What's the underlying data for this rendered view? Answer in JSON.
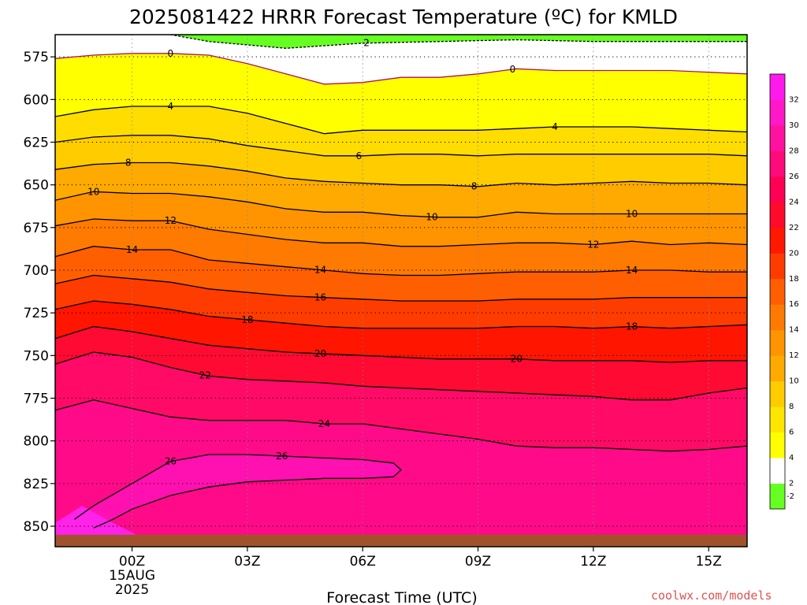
{
  "chart_data": {
    "type": "heatmap",
    "title": "2025081422 HRRR Forecast Temperature (ºC) for KMLD",
    "xlabel": "Forecast Time (UTC)",
    "ylabel": "",
    "x_ticks": [
      {
        "hour": 0,
        "label": "00Z",
        "sub": [
          "15AUG",
          "2025"
        ]
      },
      {
        "hour": 3,
        "label": "03Z"
      },
      {
        "hour": 6,
        "label": "06Z"
      },
      {
        "hour": 9,
        "label": "09Z"
      },
      {
        "hour": 12,
        "label": "12Z"
      },
      {
        "hour": 15,
        "label": "15Z"
      }
    ],
    "xlim": [
      -2,
      16
    ],
    "y_ticks": [
      575,
      600,
      625,
      650,
      675,
      700,
      725,
      750,
      775,
      800,
      825,
      850
    ],
    "ylim": [
      562,
      862
    ],
    "ground_level_hpa": 855,
    "colorbar": {
      "levels": [
        -2,
        2,
        4,
        6,
        8,
        10,
        12,
        14,
        16,
        18,
        20,
        22,
        24,
        26,
        28,
        30,
        32
      ],
      "colors": [
        "#66ff22",
        "#ffffff",
        "#ffff00",
        "#ffe600",
        "#ffcc00",
        "#ffaa00",
        "#ff9400",
        "#ff7a00",
        "#ff5f00",
        "#ff3c00",
        "#ff1900",
        "#ff0a2a",
        "#ff0055",
        "#ff0a7a",
        "#ff12a0",
        "#ff18c8",
        "#ff1aec"
      ]
    },
    "contours": [
      {
        "value": 2,
        "label": "2",
        "dashed": true,
        "color": "#000000",
        "points": [
          [
            1,
            562
          ],
          [
            2,
            566
          ],
          [
            4,
            570
          ],
          [
            6,
            567
          ],
          [
            8,
            566
          ],
          [
            10,
            565
          ],
          [
            12,
            566
          ],
          [
            14,
            566
          ],
          [
            16,
            566
          ]
        ],
        "label_at": 6.1
      },
      {
        "value": 0,
        "label": "0",
        "color": "#aa1166",
        "dashed": false,
        "points": [
          [
            -2,
            576
          ],
          [
            -1,
            574
          ],
          [
            0,
            573
          ],
          [
            1,
            573
          ],
          [
            2,
            574
          ],
          [
            3,
            579
          ],
          [
            4,
            585
          ],
          [
            5,
            591
          ],
          [
            6,
            590
          ],
          [
            7,
            587
          ],
          [
            8,
            587
          ],
          [
            9,
            585
          ],
          [
            10,
            582
          ],
          [
            11,
            583
          ],
          [
            12,
            583
          ],
          [
            13,
            583
          ],
          [
            14,
            583
          ],
          [
            15,
            584
          ],
          [
            16,
            585
          ]
        ],
        "label_at": 1.0,
        "label_at2": 9.9
      },
      {
        "value": 4,
        "label": "4",
        "points": [
          [
            -2,
            610
          ],
          [
            -1,
            606
          ],
          [
            0,
            604
          ],
          [
            1,
            604
          ],
          [
            2,
            604
          ],
          [
            3,
            608
          ],
          [
            4,
            614
          ],
          [
            5,
            620
          ],
          [
            6,
            618
          ],
          [
            7,
            618
          ],
          [
            8,
            618
          ],
          [
            9,
            618
          ],
          [
            10,
            617
          ],
          [
            11,
            616
          ],
          [
            12,
            616
          ],
          [
            13,
            616
          ],
          [
            14,
            617
          ],
          [
            15,
            618
          ],
          [
            16,
            619
          ]
        ],
        "label_at": 1.0,
        "label_at2": 11.0
      },
      {
        "value": 6,
        "label": "6",
        "points": [
          [
            -2,
            625
          ],
          [
            -1,
            622
          ],
          [
            0,
            621
          ],
          [
            1,
            621
          ],
          [
            2,
            623
          ],
          [
            3,
            627
          ],
          [
            4,
            630
          ],
          [
            5,
            633
          ],
          [
            6,
            633
          ],
          [
            7,
            632
          ],
          [
            8,
            632
          ],
          [
            9,
            633
          ],
          [
            10,
            632
          ],
          [
            11,
            632
          ],
          [
            12,
            632
          ],
          [
            13,
            632
          ],
          [
            14,
            632
          ],
          [
            15,
            632
          ],
          [
            16,
            633
          ]
        ],
        "label_at": 5.9
      },
      {
        "value": 8,
        "label": "8",
        "points": [
          [
            -2,
            641
          ],
          [
            -1,
            638
          ],
          [
            0,
            637
          ],
          [
            1,
            637
          ],
          [
            2,
            639
          ],
          [
            3,
            642
          ],
          [
            4,
            646
          ],
          [
            5,
            648
          ],
          [
            6,
            649
          ],
          [
            7,
            650
          ],
          [
            8,
            650
          ],
          [
            9,
            651
          ],
          [
            10,
            649
          ],
          [
            11,
            650
          ],
          [
            12,
            649
          ],
          [
            13,
            648
          ],
          [
            14,
            649
          ],
          [
            15,
            649
          ],
          [
            16,
            650
          ]
        ],
        "label_at": -0.1,
        "label_at2": 8.9
      },
      {
        "value": 10,
        "label": "10",
        "points": [
          [
            -2,
            659
          ],
          [
            -1,
            654
          ],
          [
            0,
            655
          ],
          [
            1,
            655
          ],
          [
            2,
            657
          ],
          [
            3,
            660
          ],
          [
            4,
            664
          ],
          [
            5,
            666
          ],
          [
            6,
            666
          ],
          [
            7,
            668
          ],
          [
            8,
            669
          ],
          [
            9,
            669
          ],
          [
            10,
            666
          ],
          [
            11,
            667
          ],
          [
            12,
            667
          ],
          [
            13,
            667
          ],
          [
            14,
            667
          ],
          [
            15,
            667
          ],
          [
            16,
            667
          ]
        ],
        "label_at": -1.0,
        "label_at2": 7.8,
        "label_at3": 13.0
      },
      {
        "value": 12,
        "label": "12",
        "points": [
          [
            -2,
            674
          ],
          [
            -1,
            670
          ],
          [
            0,
            671
          ],
          [
            1,
            671
          ],
          [
            2,
            676
          ],
          [
            3,
            679
          ],
          [
            4,
            682
          ],
          [
            5,
            684
          ],
          [
            6,
            684
          ],
          [
            7,
            686
          ],
          [
            8,
            686
          ],
          [
            9,
            685
          ],
          [
            10,
            684
          ],
          [
            11,
            684
          ],
          [
            12,
            685
          ],
          [
            13,
            683
          ],
          [
            14,
            685
          ],
          [
            15,
            684
          ],
          [
            16,
            685
          ]
        ],
        "label_at": 1.0,
        "label_at2": 12.0
      },
      {
        "value": 14,
        "label": "14",
        "points": [
          [
            -2,
            692
          ],
          [
            -1,
            686
          ],
          [
            0,
            688
          ],
          [
            1,
            688
          ],
          [
            2,
            694
          ],
          [
            3,
            696
          ],
          [
            4,
            698
          ],
          [
            5,
            700
          ],
          [
            6,
            702
          ],
          [
            7,
            703
          ],
          [
            8,
            703
          ],
          [
            9,
            702
          ],
          [
            10,
            701
          ],
          [
            11,
            701
          ],
          [
            12,
            701
          ],
          [
            13,
            700
          ],
          [
            14,
            700
          ],
          [
            15,
            701
          ],
          [
            16,
            701
          ]
        ],
        "label_at": 0.0,
        "label_at2": 4.9,
        "label_at3": 13.0
      },
      {
        "value": 16,
        "label": "16",
        "points": [
          [
            -2,
            708
          ],
          [
            -1,
            703
          ],
          [
            0,
            705
          ],
          [
            1,
            707
          ],
          [
            2,
            711
          ],
          [
            3,
            713
          ],
          [
            4,
            715
          ],
          [
            5,
            716
          ],
          [
            6,
            717
          ],
          [
            7,
            718
          ],
          [
            8,
            718
          ],
          [
            9,
            718
          ],
          [
            10,
            717
          ],
          [
            11,
            717
          ],
          [
            12,
            717
          ],
          [
            13,
            716
          ],
          [
            14,
            716
          ],
          [
            15,
            716
          ],
          [
            16,
            716
          ]
        ],
        "label_at": 4.9
      },
      {
        "value": 18,
        "label": "18",
        "points": [
          [
            -2,
            723
          ],
          [
            -1,
            718
          ],
          [
            0,
            720
          ],
          [
            1,
            723
          ],
          [
            2,
            727
          ],
          [
            3,
            729
          ],
          [
            4,
            731
          ],
          [
            5,
            733
          ],
          [
            6,
            734
          ],
          [
            7,
            734
          ],
          [
            8,
            734
          ],
          [
            9,
            734
          ],
          [
            10,
            733
          ],
          [
            11,
            733
          ],
          [
            12,
            734
          ],
          [
            13,
            733
          ],
          [
            14,
            734
          ],
          [
            15,
            733
          ],
          [
            16,
            732
          ]
        ],
        "label_at": 3.0,
        "label_at2": 13.0
      },
      {
        "value": 20,
        "label": "20",
        "points": [
          [
            -2,
            740
          ],
          [
            -1,
            733
          ],
          [
            0,
            736
          ],
          [
            1,
            740
          ],
          [
            2,
            744
          ],
          [
            3,
            746
          ],
          [
            4,
            748
          ],
          [
            5,
            749
          ],
          [
            6,
            750
          ],
          [
            7,
            751
          ],
          [
            8,
            752
          ],
          [
            9,
            752
          ],
          [
            10,
            752
          ],
          [
            11,
            753
          ],
          [
            12,
            753
          ],
          [
            13,
            753
          ],
          [
            14,
            754
          ],
          [
            15,
            753
          ],
          [
            16,
            753
          ]
        ],
        "label_at": 4.9,
        "label_at2": 10.0
      },
      {
        "value": 22,
        "label": "22",
        "points": [
          [
            -2,
            755
          ],
          [
            -1,
            748
          ],
          [
            0,
            751
          ],
          [
            1,
            757
          ],
          [
            2,
            762
          ],
          [
            3,
            764
          ],
          [
            4,
            765
          ],
          [
            5,
            766
          ],
          [
            6,
            768
          ],
          [
            7,
            769
          ],
          [
            8,
            770
          ],
          [
            9,
            771
          ],
          [
            10,
            772
          ],
          [
            11,
            773
          ],
          [
            12,
            774
          ],
          [
            13,
            776
          ],
          [
            14,
            776
          ],
          [
            15,
            772
          ],
          [
            16,
            769
          ]
        ],
        "label_at": 1.9
      },
      {
        "value": 24,
        "label": "24",
        "points": [
          [
            -2,
            782
          ],
          [
            -1,
            776
          ],
          [
            0,
            781
          ],
          [
            1,
            786
          ],
          [
            2,
            788
          ],
          [
            3,
            788
          ],
          [
            4,
            788
          ],
          [
            5,
            790
          ],
          [
            6,
            790
          ],
          [
            7,
            793
          ],
          [
            8,
            796
          ],
          [
            9,
            799
          ],
          [
            10,
            803
          ],
          [
            11,
            804
          ],
          [
            12,
            804
          ],
          [
            13,
            805
          ],
          [
            14,
            806
          ],
          [
            15,
            805
          ],
          [
            16,
            803
          ]
        ],
        "label_at": 5.0
      },
      {
        "value": 26,
        "label": "26",
        "points": [
          [
            -1.5,
            846
          ],
          [
            -1,
            838
          ],
          [
            0,
            825
          ],
          [
            1,
            812
          ],
          [
            2,
            808
          ],
          [
            3,
            808
          ],
          [
            4,
            809
          ],
          [
            5,
            810
          ],
          [
            6,
            811
          ],
          [
            6.8,
            813
          ],
          [
            7,
            817
          ],
          [
            6.8,
            821
          ],
          [
            6,
            822
          ],
          [
            5,
            822
          ],
          [
            4,
            823
          ],
          [
            3,
            824
          ],
          [
            2,
            827
          ],
          [
            1,
            832
          ],
          [
            0,
            840
          ],
          [
            -0.5,
            846
          ],
          [
            -1.0,
            851
          ]
        ],
        "label_at": 1.0,
        "label_at2": 3.9
      }
    ]
  },
  "watermark": "coolwx.com/models"
}
